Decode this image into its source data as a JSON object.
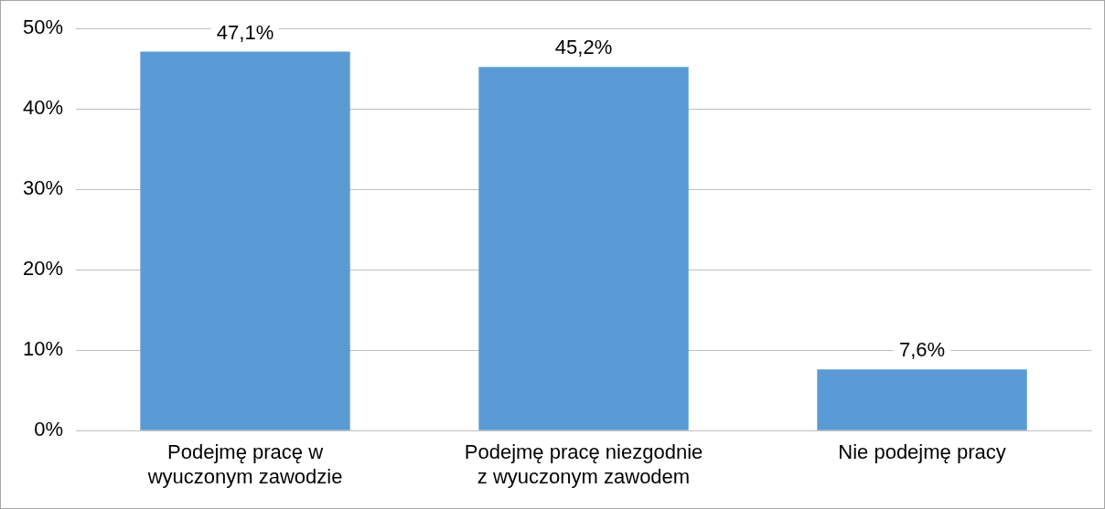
{
  "chart_data": {
    "type": "bar",
    "categories": [
      "Podejmę pracę w wyuczonym zawodzie",
      "Podejmę pracę niezgodnie z wyuczonym zawodem",
      "Nie podejmę pracy"
    ],
    "values": [
      47.1,
      45.2,
      7.6
    ],
    "color": "#5b9bd5",
    "value_labels": [
      "47,1%",
      "45,2%",
      "7,6%"
    ],
    "ylim": [
      0,
      50
    ],
    "yticks": [
      {
        "value": 0,
        "label": "0%"
      },
      {
        "value": 10,
        "label": "10%"
      },
      {
        "value": 20,
        "label": "20%"
      },
      {
        "value": 30,
        "label": "30%"
      },
      {
        "value": 40,
        "label": "40%"
      },
      {
        "value": 50,
        "label": "50%"
      }
    ],
    "grid": "y",
    "legend": false
  }
}
